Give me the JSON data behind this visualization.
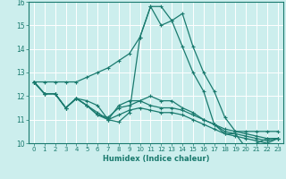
{
  "xlabel": "Humidex (Indice chaleur)",
  "xlim": [
    -0.5,
    23.5
  ],
  "ylim": [
    10,
    16
  ],
  "yticks": [
    10,
    11,
    12,
    13,
    14,
    15,
    16
  ],
  "xticks": [
    0,
    1,
    2,
    3,
    4,
    5,
    6,
    7,
    8,
    9,
    10,
    11,
    12,
    13,
    14,
    15,
    16,
    17,
    18,
    19,
    20,
    21,
    22,
    23
  ],
  "bg_color": "#cceeed",
  "grid_color": "#ffffff",
  "line_color": "#1a7a6e",
  "series": [
    [
      12.6,
      12.6,
      12.6,
      12.6,
      12.6,
      12.8,
      13.0,
      13.2,
      13.5,
      13.8,
      14.5,
      15.8,
      15.8,
      15.2,
      15.5,
      14.1,
      13.0,
      12.2,
      11.1,
      10.5,
      10.5,
      10.5,
      10.5,
      10.5
    ],
    [
      12.6,
      12.1,
      12.1,
      11.5,
      11.9,
      11.8,
      11.6,
      11.0,
      10.9,
      11.3,
      14.5,
      15.8,
      15.0,
      15.2,
      14.1,
      13.0,
      12.2,
      10.8,
      10.4,
      10.4,
      9.8,
      10.0,
      10.2,
      10.2
    ],
    [
      12.6,
      12.1,
      12.1,
      11.5,
      11.9,
      11.6,
      11.3,
      11.0,
      11.6,
      11.8,
      11.8,
      12.0,
      11.8,
      11.8,
      11.5,
      11.3,
      11.0,
      10.8,
      10.5,
      10.4,
      10.3,
      10.2,
      10.1,
      10.2
    ],
    [
      12.6,
      12.1,
      12.1,
      11.5,
      11.9,
      11.6,
      11.2,
      11.1,
      11.5,
      11.6,
      11.8,
      11.6,
      11.5,
      11.5,
      11.4,
      11.2,
      11.0,
      10.8,
      10.6,
      10.5,
      10.4,
      10.3,
      10.2,
      10.2
    ],
    [
      12.6,
      12.1,
      12.1,
      11.5,
      11.9,
      11.6,
      11.2,
      11.0,
      11.2,
      11.4,
      11.5,
      11.4,
      11.3,
      11.3,
      11.2,
      11.0,
      10.8,
      10.6,
      10.4,
      10.3,
      10.2,
      10.1,
      10.0,
      10.2
    ]
  ]
}
